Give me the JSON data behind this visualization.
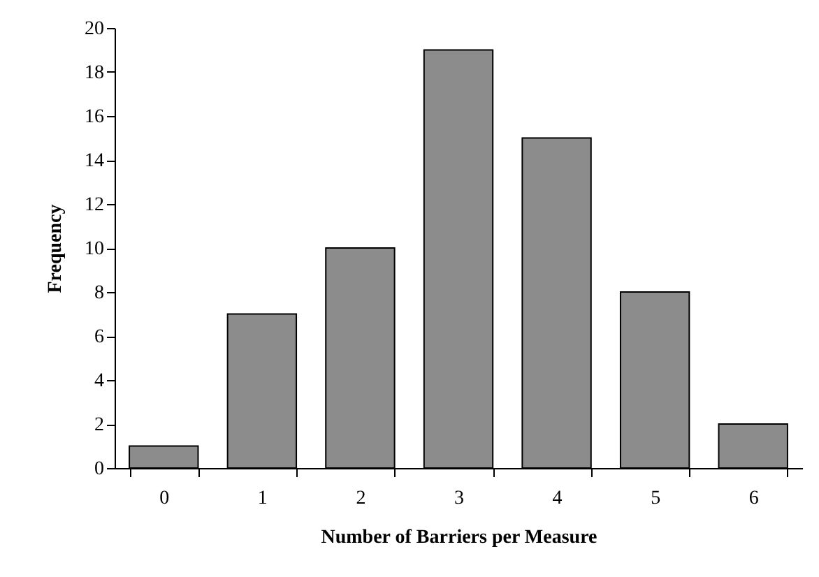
{
  "chart_data": {
    "type": "bar",
    "xlabel": "Number of Barriers per Measure",
    "ylabel": "Frequency",
    "categories": [
      "0",
      "1",
      "2",
      "3",
      "4",
      "5",
      "6"
    ],
    "values": [
      1,
      7,
      10,
      19,
      15,
      8,
      2
    ],
    "color": "#8c8c8c",
    "ylim": [
      0,
      20
    ],
    "yticks": [
      0,
      2,
      4,
      6,
      8,
      10,
      12,
      14,
      16,
      18,
      20
    ],
    "grid": false
  }
}
